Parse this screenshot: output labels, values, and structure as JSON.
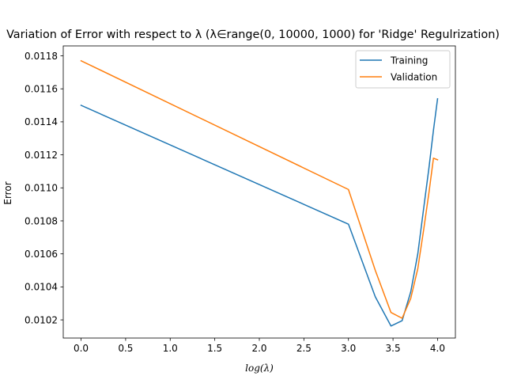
{
  "chart_data": {
    "type": "line",
    "title": "Variation of Error with respect to λ (λ∈range(0, 10000, 1000) for 'Ridge' Regulrization)",
    "xlabel": "log(λ)",
    "ylabel": "Error",
    "xlim": [
      -0.2,
      4.2
    ],
    "ylim": [
      0.01009,
      0.01186
    ],
    "xticks": [
      0.0,
      0.5,
      1.0,
      1.5,
      2.0,
      2.5,
      3.0,
      3.5,
      4.0
    ],
    "xtick_labels": [
      "0.0",
      "0.5",
      "1.0",
      "1.5",
      "2.0",
      "2.5",
      "3.0",
      "3.5",
      "4.0"
    ],
    "yticks": [
      0.0102,
      0.0104,
      0.0106,
      0.0108,
      0.011,
      0.0112,
      0.0114,
      0.0116,
      0.0118
    ],
    "ytick_labels": [
      "0.0102",
      "0.0104",
      "0.0106",
      "0.0108",
      "0.0110",
      "0.0112",
      "0.0114",
      "0.0116",
      "0.0118"
    ],
    "grid": false,
    "legend_position": "top-right",
    "x": [
      0.0,
      3.0,
      3.301,
      3.477,
      3.602,
      3.699,
      3.778,
      3.845,
      3.903,
      3.954,
      4.0
    ],
    "series": [
      {
        "name": "Training",
        "color": "#1f77b4",
        "values": [
          0.0115,
          0.01078,
          0.01034,
          0.010163,
          0.010195,
          0.01037,
          0.0106,
          0.01088,
          0.01112,
          0.01135,
          0.01154
        ]
      },
      {
        "name": "Validation",
        "color": "#ff7f0e",
        "values": [
          0.01177,
          0.01099,
          0.0105,
          0.010245,
          0.01021,
          0.01033,
          0.01051,
          0.01075,
          0.01097,
          0.01118,
          0.01117
        ]
      }
    ]
  }
}
